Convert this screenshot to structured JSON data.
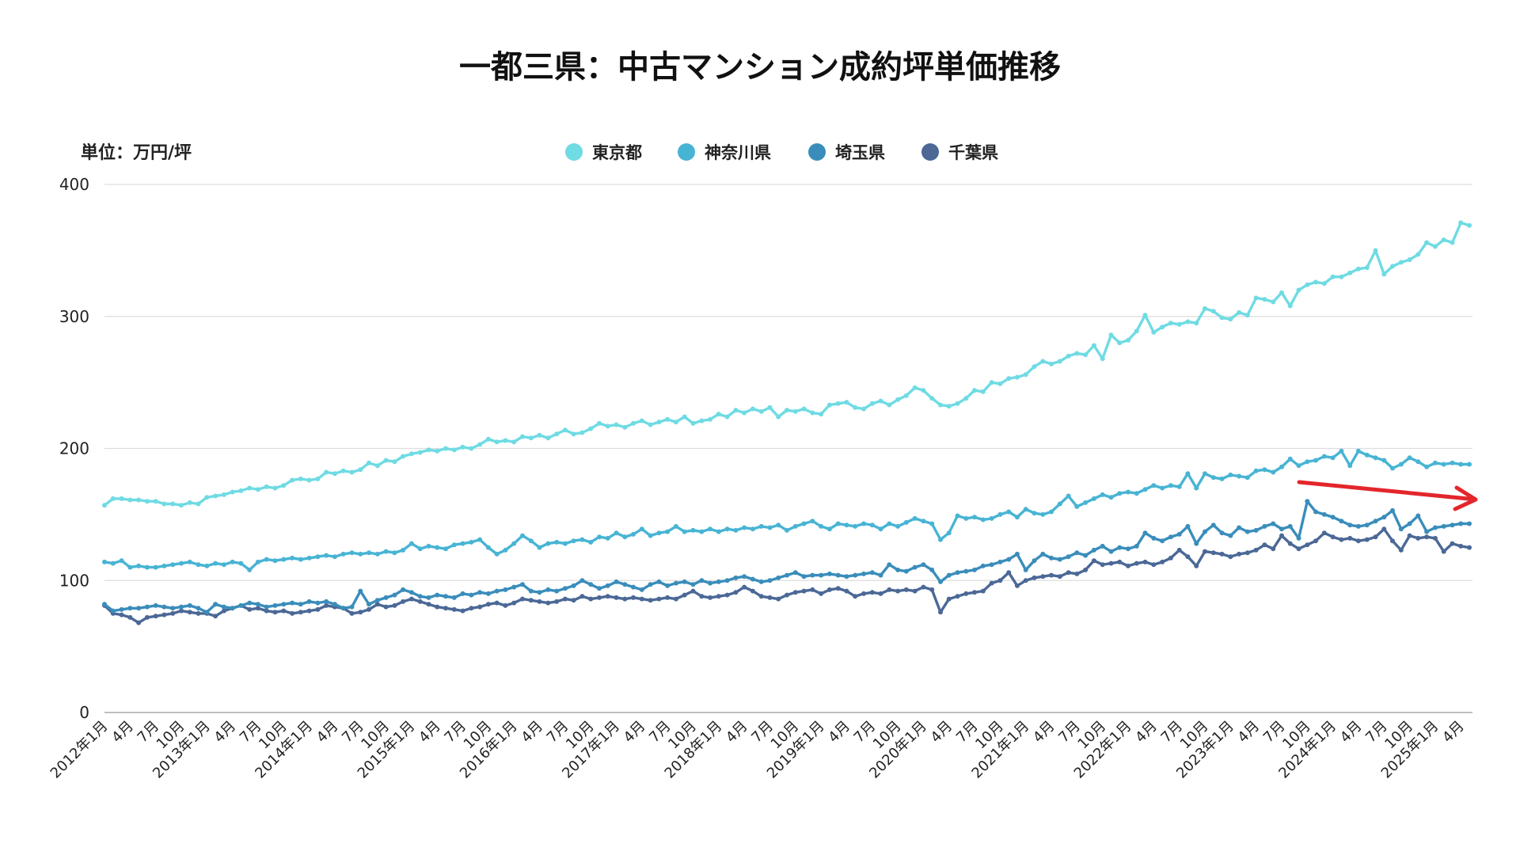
{
  "chart_data": {
    "type": "line",
    "title": "一都三県：中古マンション成約坪単価推移",
    "ylabel": "単位：万円/坪",
    "xlabel": "",
    "ylim": [
      0,
      400
    ],
    "yticks": [
      0,
      100,
      200,
      300,
      400
    ],
    "grid": true,
    "legend_position": "top-center",
    "arrow_color": "#e3262b",
    "x": [
      "2012-01",
      "2012-02",
      "2012-03",
      "2012-04",
      "2012-05",
      "2012-06",
      "2012-07",
      "2012-08",
      "2012-09",
      "2012-10",
      "2012-11",
      "2012-12",
      "2013-01",
      "2013-02",
      "2013-03",
      "2013-04",
      "2013-05",
      "2013-06",
      "2013-07",
      "2013-08",
      "2013-09",
      "2013-10",
      "2013-11",
      "2013-12",
      "2014-01",
      "2014-02",
      "2014-03",
      "2014-04",
      "2014-05",
      "2014-06",
      "2014-07",
      "2014-08",
      "2014-09",
      "2014-10",
      "2014-11",
      "2014-12",
      "2015-01",
      "2015-02",
      "2015-03",
      "2015-04",
      "2015-05",
      "2015-06",
      "2015-07",
      "2015-08",
      "2015-09",
      "2015-10",
      "2015-11",
      "2015-12",
      "2016-01",
      "2016-02",
      "2016-03",
      "2016-04",
      "2016-05",
      "2016-06",
      "2016-07",
      "2016-08",
      "2016-09",
      "2016-10",
      "2016-11",
      "2016-12",
      "2017-01",
      "2017-02",
      "2017-03",
      "2017-04",
      "2017-05",
      "2017-06",
      "2017-07",
      "2017-08",
      "2017-09",
      "2017-10",
      "2017-11",
      "2017-12",
      "2018-01",
      "2018-02",
      "2018-03",
      "2018-04",
      "2018-05",
      "2018-06",
      "2018-07",
      "2018-08",
      "2018-09",
      "2018-10",
      "2018-11",
      "2018-12",
      "2019-01",
      "2019-02",
      "2019-03",
      "2019-04",
      "2019-05",
      "2019-06",
      "2019-07",
      "2019-08",
      "2019-09",
      "2019-10",
      "2019-11",
      "2019-12",
      "2020-01",
      "2020-02",
      "2020-03",
      "2020-04",
      "2020-05",
      "2020-06",
      "2020-07",
      "2020-08",
      "2020-09",
      "2020-10",
      "2020-11",
      "2020-12",
      "2021-01",
      "2021-02",
      "2021-03",
      "2021-04",
      "2021-05",
      "2021-06",
      "2021-07",
      "2021-08",
      "2021-09",
      "2021-10",
      "2021-11",
      "2021-12",
      "2022-01",
      "2022-02",
      "2022-03",
      "2022-04",
      "2022-05",
      "2022-06",
      "2022-07",
      "2022-08",
      "2022-09",
      "2022-10",
      "2022-11",
      "2022-12",
      "2023-01",
      "2023-02",
      "2023-03",
      "2023-04",
      "2023-05",
      "2023-06",
      "2023-07",
      "2023-08",
      "2023-09",
      "2023-10",
      "2023-11",
      "2023-12",
      "2024-01",
      "2024-02",
      "2024-03",
      "2024-04",
      "2024-05",
      "2024-06",
      "2024-07",
      "2024-08",
      "2024-09",
      "2024-10",
      "2024-11",
      "2024-12",
      "2025-01",
      "2025-02",
      "2025-03",
      "2025-04",
      "2025-05"
    ],
    "xtick_labels": [
      "2012年1月",
      "4月",
      "7月",
      "10月",
      "2013年1月",
      "4月",
      "7月",
      "10月",
      "2014年1月",
      "4月",
      "7月",
      "10月",
      "2015年1月",
      "4月",
      "7月",
      "10月",
      "2016年1月",
      "4月",
      "7月",
      "10月",
      "2017年1月",
      "4月",
      "7月",
      "10月",
      "2018年1月",
      "4月",
      "7月",
      "10月",
      "2019年1月",
      "4月",
      "7月",
      "10月",
      "2020年1月",
      "4月",
      "7月",
      "10月",
      "2021年1月",
      "4月",
      "7月",
      "10月",
      "2022年1月",
      "4月",
      "7月",
      "10月",
      "2023年1月",
      "4月",
      "7月",
      "10月",
      "2024年1月",
      "4月",
      "7月",
      "10月",
      "2025年1月",
      "4月"
    ],
    "series": [
      {
        "name": "東京都",
        "color": "#6fdbe3",
        "values": [
          157,
          162,
          162,
          161,
          161,
          160,
          160,
          158,
          158,
          157,
          159,
          158,
          163,
          164,
          165,
          167,
          168,
          170,
          169,
          171,
          170,
          172,
          176,
          177,
          176,
          177,
          182,
          181,
          183,
          182,
          184,
          189,
          187,
          191,
          190,
          194,
          196,
          197,
          199,
          198,
          200,
          199,
          201,
          200,
          203,
          207,
          205,
          206,
          205,
          209,
          208,
          210,
          208,
          211,
          214,
          211,
          212,
          215,
          219,
          217,
          218,
          216,
          219,
          221,
          218,
          220,
          222,
          220,
          224,
          219,
          221,
          222,
          226,
          224,
          229,
          227,
          230,
          228,
          231,
          224,
          229,
          228,
          230,
          227,
          226,
          233,
          234,
          235,
          231,
          230,
          234,
          236,
          233,
          237,
          240,
          246,
          244,
          238,
          233,
          232,
          234,
          238,
          244,
          243,
          250,
          249,
          253,
          254,
          256,
          262,
          266,
          264,
          266,
          270,
          272,
          271,
          278,
          268,
          286,
          280,
          282,
          289,
          301,
          288,
          292,
          295,
          294,
          296,
          295,
          306,
          304,
          299,
          298,
          303,
          301,
          314,
          313,
          311,
          318,
          308,
          320,
          324,
          326,
          325,
          330,
          330,
          333,
          336,
          337,
          350,
          332,
          338,
          341,
          343,
          347,
          356,
          353,
          358,
          356,
          371,
          369
        ]
      },
      {
        "name": "神奈川県",
        "color": "#48b4d4",
        "values": [
          114,
          113,
          115,
          110,
          111,
          110,
          110,
          111,
          112,
          113,
          114,
          112,
          111,
          113,
          112,
          114,
          113,
          108,
          114,
          116,
          115,
          116,
          117,
          116,
          117,
          118,
          119,
          118,
          120,
          121,
          120,
          121,
          120,
          122,
          121,
          123,
          128,
          124,
          126,
          125,
          124,
          127,
          128,
          129,
          131,
          125,
          120,
          123,
          128,
          134,
          130,
          125,
          128,
          129,
          128,
          130,
          131,
          129,
          133,
          132,
          136,
          133,
          135,
          139,
          134,
          136,
          137,
          141,
          137,
          138,
          137,
          139,
          137,
          139,
          138,
          140,
          139,
          141,
          140,
          142,
          138,
          141,
          143,
          145,
          141,
          139,
          143,
          142,
          141,
          143,
          142,
          139,
          143,
          141,
          144,
          147,
          145,
          143,
          131,
          136,
          149,
          147,
          148,
          146,
          147,
          150,
          152,
          148,
          154,
          151,
          150,
          152,
          158,
          164,
          156,
          159,
          162,
          165,
          163,
          166,
          167,
          166,
          169,
          172,
          170,
          172,
          171,
          181,
          170,
          181,
          178,
          177,
          180,
          179,
          178,
          183,
          184,
          182,
          186,
          192,
          187,
          190,
          191,
          194,
          193,
          198,
          187,
          198,
          195,
          193,
          191,
          185,
          188,
          193,
          190,
          186,
          189,
          188,
          189,
          188,
          188
        ]
      },
      {
        "name": "埼玉県",
        "color": "#3a8dbb",
        "values": [
          82,
          77,
          78,
          79,
          79,
          80,
          81,
          80,
          79,
          80,
          81,
          79,
          76,
          82,
          80,
          79,
          81,
          83,
          82,
          80,
          81,
          82,
          83,
          82,
          84,
          83,
          84,
          82,
          79,
          80,
          92,
          82,
          85,
          87,
          89,
          93,
          91,
          88,
          87,
          89,
          88,
          87,
          90,
          89,
          91,
          90,
          92,
          93,
          95,
          97,
          92,
          91,
          93,
          92,
          94,
          96,
          100,
          97,
          94,
          96,
          99,
          97,
          95,
          93,
          97,
          99,
          96,
          98,
          99,
          97,
          100,
          98,
          99,
          100,
          102,
          103,
          101,
          99,
          100,
          102,
          104,
          106,
          103,
          104,
          104,
          105,
          104,
          103,
          104,
          105,
          106,
          104,
          112,
          108,
          107,
          110,
          112,
          108,
          99,
          104,
          106,
          107,
          108,
          111,
          112,
          114,
          116,
          120,
          108,
          115,
          120,
          117,
          116,
          118,
          121,
          119,
          123,
          126,
          122,
          125,
          124,
          126,
          136,
          132,
          130,
          133,
          135,
          141,
          128,
          137,
          142,
          136,
          134,
          140,
          137,
          138,
          141,
          143,
          139,
          141,
          132,
          160,
          152,
          150,
          148,
          145,
          142,
          141,
          142,
          145,
          148,
          153,
          139,
          143,
          149,
          137,
          140,
          141,
          142,
          143,
          143
        ]
      },
      {
        "name": "千葉県",
        "color": "#4b6896",
        "values": [
          81,
          75,
          74,
          72,
          68,
          72,
          73,
          74,
          75,
          77,
          76,
          75,
          75,
          73,
          77,
          79,
          81,
          78,
          79,
          77,
          76,
          77,
          75,
          76,
          77,
          78,
          81,
          80,
          79,
          75,
          76,
          78,
          82,
          80,
          81,
          84,
          86,
          84,
          82,
          80,
          79,
          78,
          77,
          79,
          80,
          82,
          83,
          81,
          83,
          86,
          85,
          84,
          83,
          84,
          86,
          85,
          88,
          86,
          87,
          88,
          87,
          86,
          87,
          86,
          85,
          86,
          87,
          86,
          89,
          92,
          88,
          87,
          88,
          89,
          91,
          95,
          92,
          88,
          87,
          86,
          89,
          91,
          92,
          93,
          90,
          93,
          94,
          92,
          88,
          90,
          91,
          90,
          93,
          92,
          93,
          92,
          95,
          93,
          76,
          86,
          88,
          90,
          91,
          92,
          98,
          100,
          106,
          96,
          100,
          102,
          103,
          104,
          103,
          106,
          105,
          108,
          115,
          112,
          113,
          114,
          111,
          113,
          114,
          112,
          114,
          117,
          123,
          118,
          111,
          122,
          121,
          120,
          118,
          120,
          121,
          123,
          127,
          124,
          134,
          128,
          124,
          127,
          130,
          136,
          133,
          131,
          132,
          130,
          131,
          133,
          139,
          130,
          123,
          134,
          132,
          133,
          132,
          122,
          128,
          126,
          125
        ]
      }
    ]
  }
}
